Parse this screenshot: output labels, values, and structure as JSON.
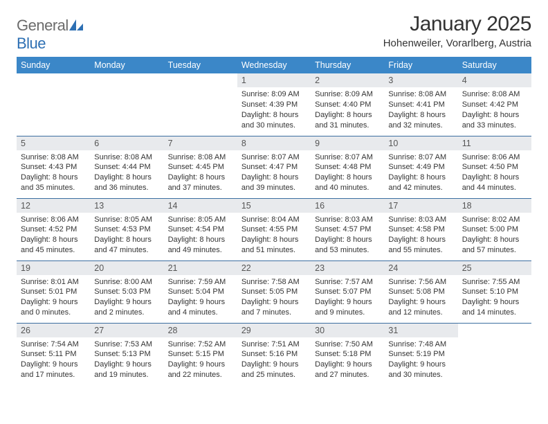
{
  "brand": {
    "part1": "General",
    "part2": "Blue"
  },
  "title": "January 2025",
  "location": "Hohenweiler, Vorarlberg, Austria",
  "colors": {
    "header_bg": "#3b87c8",
    "header_text": "#ffffff",
    "daynum_bg": "#e8eaed",
    "row_border": "#3b6ea0",
    "logo_gray": "#6b6b6b",
    "logo_blue": "#2d6fb3",
    "body_text": "#333333",
    "page_bg": "#ffffff"
  },
  "typography": {
    "title_fontsize": 30,
    "location_fontsize": 15,
    "weekday_fontsize": 12.5,
    "daynum_fontsize": 12.5,
    "body_fontsize": 11
  },
  "weekdays": [
    "Sunday",
    "Monday",
    "Tuesday",
    "Wednesday",
    "Thursday",
    "Friday",
    "Saturday"
  ],
  "weeks": [
    [
      {
        "empty": true
      },
      {
        "empty": true
      },
      {
        "empty": true
      },
      {
        "day": "1",
        "sunrise": "Sunrise: 8:09 AM",
        "sunset": "Sunset: 4:39 PM",
        "daylight1": "Daylight: 8 hours",
        "daylight2": "and 30 minutes."
      },
      {
        "day": "2",
        "sunrise": "Sunrise: 8:09 AM",
        "sunset": "Sunset: 4:40 PM",
        "daylight1": "Daylight: 8 hours",
        "daylight2": "and 31 minutes."
      },
      {
        "day": "3",
        "sunrise": "Sunrise: 8:08 AM",
        "sunset": "Sunset: 4:41 PM",
        "daylight1": "Daylight: 8 hours",
        "daylight2": "and 32 minutes."
      },
      {
        "day": "4",
        "sunrise": "Sunrise: 8:08 AM",
        "sunset": "Sunset: 4:42 PM",
        "daylight1": "Daylight: 8 hours",
        "daylight2": "and 33 minutes."
      }
    ],
    [
      {
        "day": "5",
        "sunrise": "Sunrise: 8:08 AM",
        "sunset": "Sunset: 4:43 PM",
        "daylight1": "Daylight: 8 hours",
        "daylight2": "and 35 minutes."
      },
      {
        "day": "6",
        "sunrise": "Sunrise: 8:08 AM",
        "sunset": "Sunset: 4:44 PM",
        "daylight1": "Daylight: 8 hours",
        "daylight2": "and 36 minutes."
      },
      {
        "day": "7",
        "sunrise": "Sunrise: 8:08 AM",
        "sunset": "Sunset: 4:45 PM",
        "daylight1": "Daylight: 8 hours",
        "daylight2": "and 37 minutes."
      },
      {
        "day": "8",
        "sunrise": "Sunrise: 8:07 AM",
        "sunset": "Sunset: 4:47 PM",
        "daylight1": "Daylight: 8 hours",
        "daylight2": "and 39 minutes."
      },
      {
        "day": "9",
        "sunrise": "Sunrise: 8:07 AM",
        "sunset": "Sunset: 4:48 PM",
        "daylight1": "Daylight: 8 hours",
        "daylight2": "and 40 minutes."
      },
      {
        "day": "10",
        "sunrise": "Sunrise: 8:07 AM",
        "sunset": "Sunset: 4:49 PM",
        "daylight1": "Daylight: 8 hours",
        "daylight2": "and 42 minutes."
      },
      {
        "day": "11",
        "sunrise": "Sunrise: 8:06 AM",
        "sunset": "Sunset: 4:50 PM",
        "daylight1": "Daylight: 8 hours",
        "daylight2": "and 44 minutes."
      }
    ],
    [
      {
        "day": "12",
        "sunrise": "Sunrise: 8:06 AM",
        "sunset": "Sunset: 4:52 PM",
        "daylight1": "Daylight: 8 hours",
        "daylight2": "and 45 minutes."
      },
      {
        "day": "13",
        "sunrise": "Sunrise: 8:05 AM",
        "sunset": "Sunset: 4:53 PM",
        "daylight1": "Daylight: 8 hours",
        "daylight2": "and 47 minutes."
      },
      {
        "day": "14",
        "sunrise": "Sunrise: 8:05 AM",
        "sunset": "Sunset: 4:54 PM",
        "daylight1": "Daylight: 8 hours",
        "daylight2": "and 49 minutes."
      },
      {
        "day": "15",
        "sunrise": "Sunrise: 8:04 AM",
        "sunset": "Sunset: 4:55 PM",
        "daylight1": "Daylight: 8 hours",
        "daylight2": "and 51 minutes."
      },
      {
        "day": "16",
        "sunrise": "Sunrise: 8:03 AM",
        "sunset": "Sunset: 4:57 PM",
        "daylight1": "Daylight: 8 hours",
        "daylight2": "and 53 minutes."
      },
      {
        "day": "17",
        "sunrise": "Sunrise: 8:03 AM",
        "sunset": "Sunset: 4:58 PM",
        "daylight1": "Daylight: 8 hours",
        "daylight2": "and 55 minutes."
      },
      {
        "day": "18",
        "sunrise": "Sunrise: 8:02 AM",
        "sunset": "Sunset: 5:00 PM",
        "daylight1": "Daylight: 8 hours",
        "daylight2": "and 57 minutes."
      }
    ],
    [
      {
        "day": "19",
        "sunrise": "Sunrise: 8:01 AM",
        "sunset": "Sunset: 5:01 PM",
        "daylight1": "Daylight: 9 hours",
        "daylight2": "and 0 minutes."
      },
      {
        "day": "20",
        "sunrise": "Sunrise: 8:00 AM",
        "sunset": "Sunset: 5:03 PM",
        "daylight1": "Daylight: 9 hours",
        "daylight2": "and 2 minutes."
      },
      {
        "day": "21",
        "sunrise": "Sunrise: 7:59 AM",
        "sunset": "Sunset: 5:04 PM",
        "daylight1": "Daylight: 9 hours",
        "daylight2": "and 4 minutes."
      },
      {
        "day": "22",
        "sunrise": "Sunrise: 7:58 AM",
        "sunset": "Sunset: 5:05 PM",
        "daylight1": "Daylight: 9 hours",
        "daylight2": "and 7 minutes."
      },
      {
        "day": "23",
        "sunrise": "Sunrise: 7:57 AM",
        "sunset": "Sunset: 5:07 PM",
        "daylight1": "Daylight: 9 hours",
        "daylight2": "and 9 minutes."
      },
      {
        "day": "24",
        "sunrise": "Sunrise: 7:56 AM",
        "sunset": "Sunset: 5:08 PM",
        "daylight1": "Daylight: 9 hours",
        "daylight2": "and 12 minutes."
      },
      {
        "day": "25",
        "sunrise": "Sunrise: 7:55 AM",
        "sunset": "Sunset: 5:10 PM",
        "daylight1": "Daylight: 9 hours",
        "daylight2": "and 14 minutes."
      }
    ],
    [
      {
        "day": "26",
        "sunrise": "Sunrise: 7:54 AM",
        "sunset": "Sunset: 5:11 PM",
        "daylight1": "Daylight: 9 hours",
        "daylight2": "and 17 minutes."
      },
      {
        "day": "27",
        "sunrise": "Sunrise: 7:53 AM",
        "sunset": "Sunset: 5:13 PM",
        "daylight1": "Daylight: 9 hours",
        "daylight2": "and 19 minutes."
      },
      {
        "day": "28",
        "sunrise": "Sunrise: 7:52 AM",
        "sunset": "Sunset: 5:15 PM",
        "daylight1": "Daylight: 9 hours",
        "daylight2": "and 22 minutes."
      },
      {
        "day": "29",
        "sunrise": "Sunrise: 7:51 AM",
        "sunset": "Sunset: 5:16 PM",
        "daylight1": "Daylight: 9 hours",
        "daylight2": "and 25 minutes."
      },
      {
        "day": "30",
        "sunrise": "Sunrise: 7:50 AM",
        "sunset": "Sunset: 5:18 PM",
        "daylight1": "Daylight: 9 hours",
        "daylight2": "and 27 minutes."
      },
      {
        "day": "31",
        "sunrise": "Sunrise: 7:48 AM",
        "sunset": "Sunset: 5:19 PM",
        "daylight1": "Daylight: 9 hours",
        "daylight2": "and 30 minutes."
      },
      {
        "empty": true
      }
    ]
  ]
}
